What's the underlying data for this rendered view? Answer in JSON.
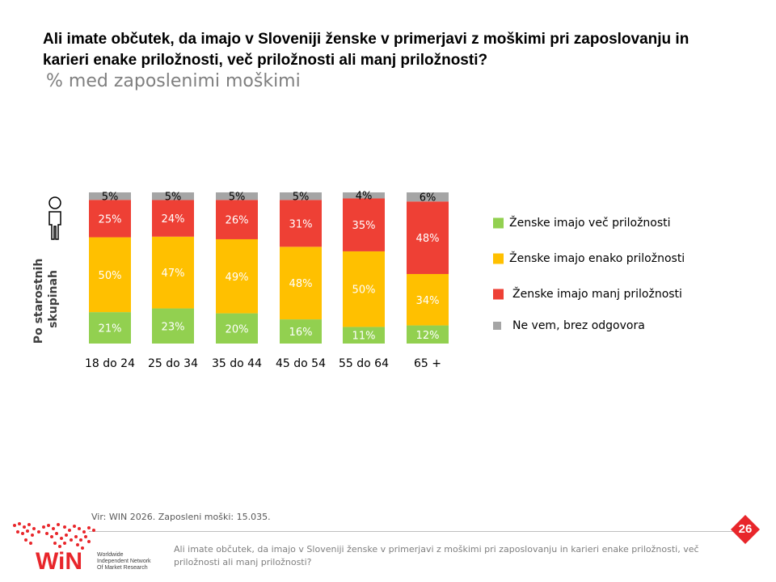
{
  "header": {
    "title": "Ali imate občutek, da imajo v Sloveniji ženske v primerjavi z moškimi pri zaposlovanju in karieri enake priložnosti, več priložnosti ali manj priložnosti?",
    "subtitle": "% med zaposlenimi moškimi"
  },
  "chart_data": {
    "type": "bar",
    "stacked": true,
    "side_label": "Po starostnih skupinah",
    "categories": [
      "18 do 24",
      "25 do 34",
      "35 do 44",
      "45 do 54",
      "55 do 64",
      "65 +"
    ],
    "series": [
      {
        "name": "Ženske imajo več priložnosti",
        "color": "#92d050",
        "values": [
          21,
          23,
          20,
          16,
          11,
          12
        ],
        "labels": [
          "21%",
          "23%",
          "20%",
          "16%",
          "11%",
          "12%"
        ]
      },
      {
        "name": "Ženske imajo enako priložnosti",
        "color": "#ffc000",
        "values": [
          50,
          47,
          49,
          48,
          50,
          34
        ],
        "labels": [
          "50%",
          "47%",
          "49%",
          "48%",
          "50%",
          "34%"
        ]
      },
      {
        "name": "Ženske imajo manj priložnosti",
        "color": "#ee4035",
        "values": [
          25,
          24,
          26,
          31,
          35,
          48
        ],
        "labels": [
          "25%",
          "24%",
          "26%",
          "31%",
          "35%",
          "48%"
        ]
      },
      {
        "name": "Ne vem, brez odgovora",
        "color": "#a5a5a5",
        "values": [
          5,
          5,
          5,
          5,
          4,
          6
        ],
        "labels": [
          "5%",
          "5%",
          "5%",
          "5%",
          "4%",
          "6%"
        ]
      }
    ],
    "legend_position": "right",
    "grid": false
  },
  "footer": {
    "source": "Vir: WIN 2026.  Zaposleni moški: 15.035.",
    "question": "Ali imate občutek, da imajo v Sloveniji ženske v primerjavi z moškimi pri zaposlovanju in karieri enake priložnosti, več priložnosti ali manj priložnosti?",
    "page_number": "26",
    "logo_text": "WiN",
    "logo_subtext": "Worldwide Independent Network Of Market Research",
    "logo_color": "#e8262b"
  },
  "icons": {
    "person": "person-icon"
  }
}
